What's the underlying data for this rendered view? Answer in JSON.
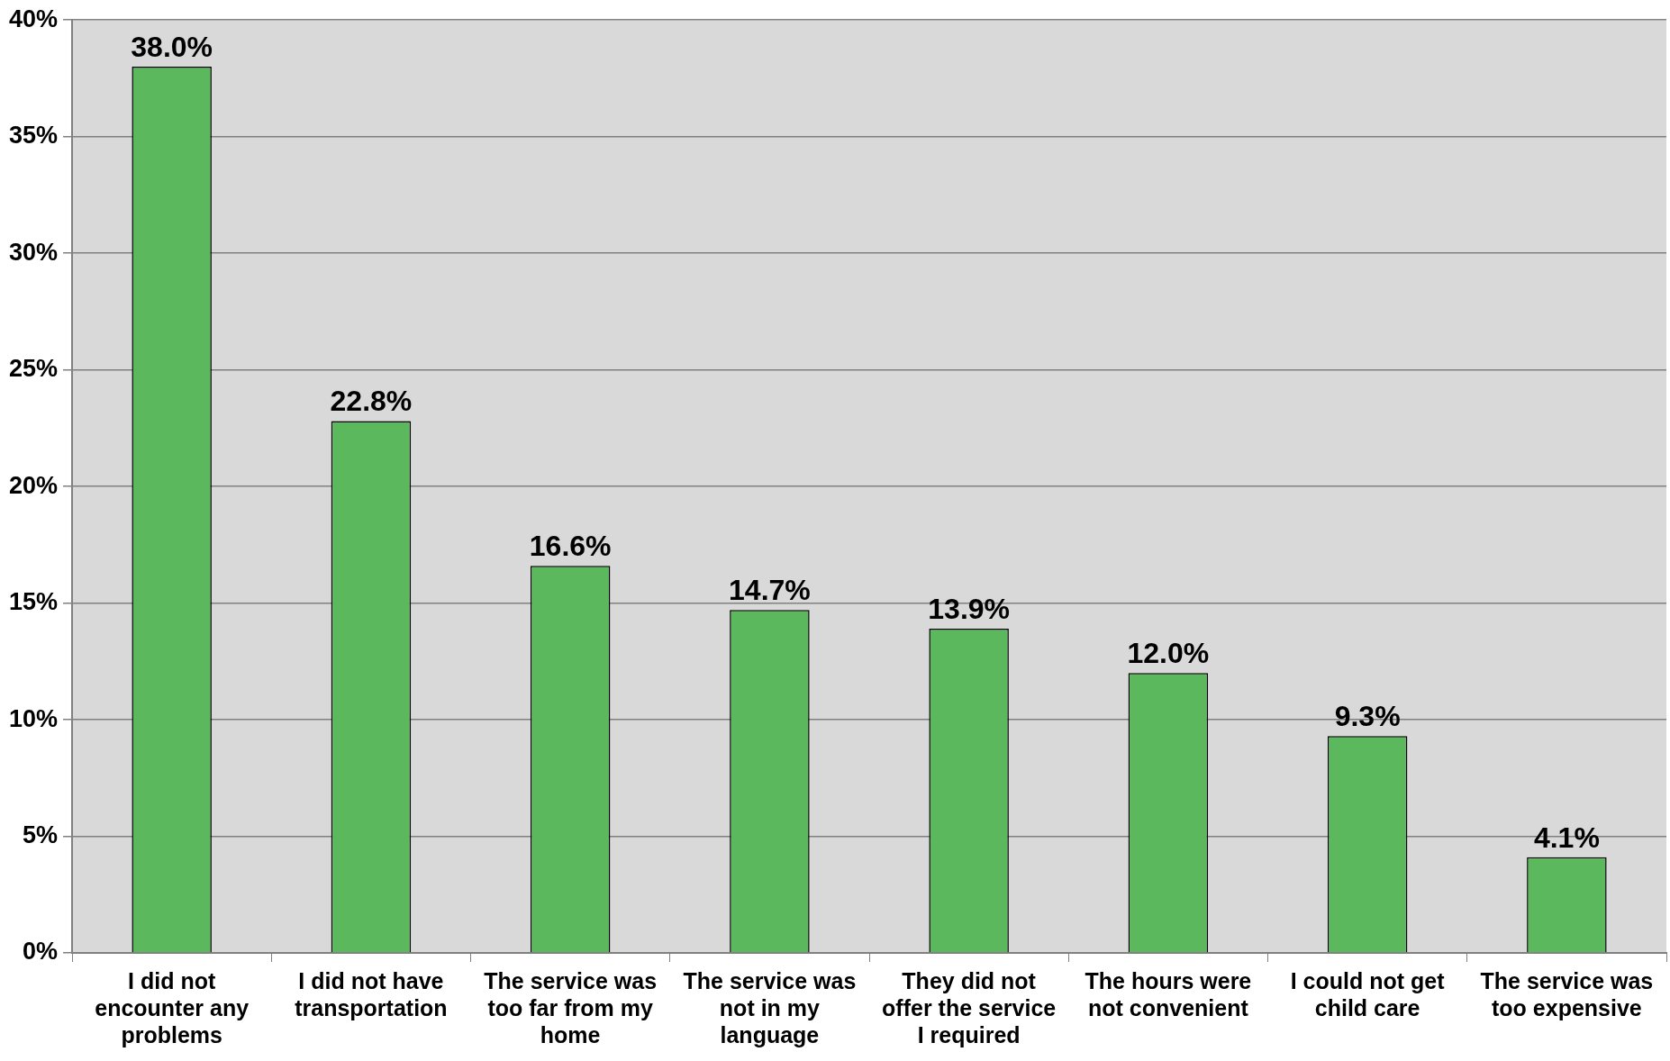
{
  "chart_data": {
    "type": "bar",
    "categories": [
      "I did not encounter any problems",
      "I did not have transportation",
      "The service was too far from my home",
      "The service was not in my language",
      "They did not offer the service I required",
      "The hours were not convenient",
      "I could not get child care",
      "The service was too expensive"
    ],
    "values": [
      38.0,
      22.8,
      16.6,
      14.7,
      13.9,
      12.0,
      9.3,
      4.1
    ],
    "color": "#5cb85c",
    "ylim": [
      0,
      40
    ],
    "yticks": [
      {
        "value": 0,
        "label": "0%"
      },
      {
        "value": 5,
        "label": "5%"
      },
      {
        "value": 10,
        "label": "10%"
      },
      {
        "value": 15,
        "label": "15%"
      },
      {
        "value": 20,
        "label": "20%"
      },
      {
        "value": 25,
        "label": "25%"
      },
      {
        "value": 30,
        "label": "30%"
      },
      {
        "value": 35,
        "label": "35%"
      },
      {
        "value": 40,
        "label": "40%"
      }
    ],
    "grid": "y",
    "legend": false,
    "value_labels": [
      "38.0%",
      "22.8%",
      "16.6%",
      "14.7%",
      "13.9%",
      "12.0%",
      "9.3%",
      "4.1%"
    ]
  }
}
